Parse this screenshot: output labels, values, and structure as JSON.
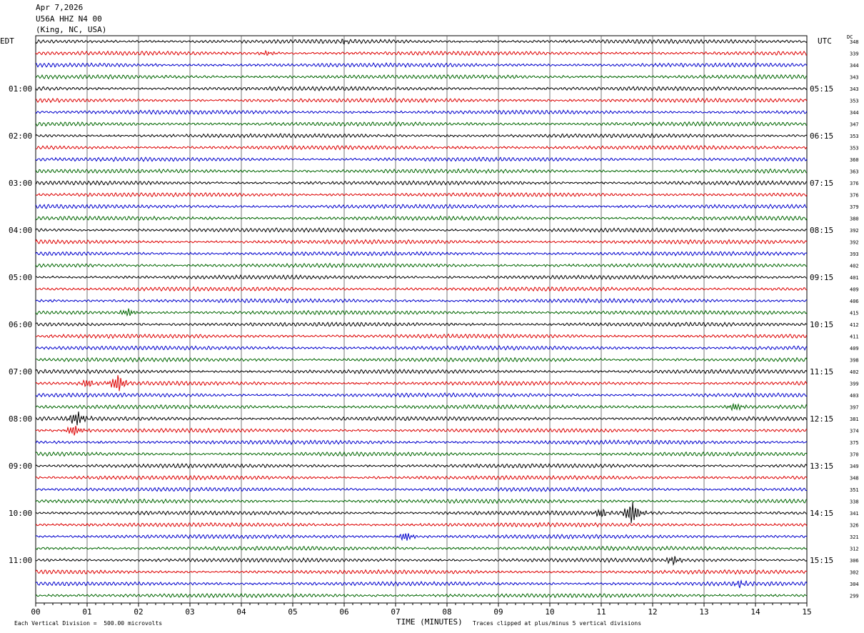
{
  "header": {
    "date": "Apr 7,2026",
    "station": "U56A HHZ N4 00",
    "location": "(King, NC, USA)"
  },
  "left_tz": "EDT",
  "right_tz": "UTC",
  "dc_label": "DC",
  "footer": {
    "scale_note": "Each Vertical Division =  500.00 microvolts",
    "xaxis_label": "TIME (MINUTES)",
    "clip_note": "Traces clipped at plus/minus 5 vertical divisions"
  },
  "chart_data": {
    "type": "line",
    "title": "",
    "xlabel": "TIME (MINUTES)",
    "xlim": [
      0,
      15
    ],
    "x_ticks": [
      "00",
      "01",
      "02",
      "03",
      "04",
      "05",
      "06",
      "07",
      "08",
      "09",
      "10",
      "11",
      "12",
      "13",
      "14",
      "15"
    ],
    "left_time_labels": [
      "01:00",
      "02:00",
      "03:00",
      "04:00",
      "05:00",
      "06:00",
      "07:00",
      "08:00",
      "09:00",
      "10:00",
      "11:00"
    ],
    "right_time_labels": [
      "05:15",
      "06:15",
      "07:15",
      "08:15",
      "09:15",
      "10:15",
      "11:15",
      "12:15",
      "13:15",
      "14:15",
      "15:15"
    ],
    "trace_colors": [
      "#000000",
      "#dd0000",
      "#0000cc",
      "#006600"
    ],
    "trace_count": 48,
    "dc_values": [
      "348",
      "339",
      "344",
      "343",
      "343",
      "353",
      "344",
      "347",
      "353",
      "353",
      "360",
      "363",
      "376",
      "376",
      "379",
      "380",
      "392",
      "392",
      "393",
      "402",
      "401",
      "409",
      "406",
      "415",
      "412",
      "411",
      "409",
      "398",
      "402",
      "399",
      "403",
      "397",
      "381",
      "374",
      "375",
      "370",
      "349",
      "348",
      "351",
      "338",
      "341",
      "326",
      "321",
      "312",
      "306",
      "302",
      "304",
      "299"
    ],
    "events": [
      {
        "trace": 29,
        "minute": 1.0,
        "amplitude": 0.5
      },
      {
        "trace": 29,
        "minute": 1.6,
        "amplitude": 1.1
      },
      {
        "trace": 32,
        "minute": 0.8,
        "amplitude": 0.9
      },
      {
        "trace": 33,
        "minute": 0.75,
        "amplitude": 0.7
      },
      {
        "trace": 23,
        "minute": 1.8,
        "amplitude": 0.5
      },
      {
        "trace": 31,
        "minute": 13.6,
        "amplitude": 0.5
      },
      {
        "trace": 40,
        "minute": 11.0,
        "amplitude": 0.6
      },
      {
        "trace": 40,
        "minute": 11.6,
        "amplitude": 1.5
      },
      {
        "trace": 42,
        "minute": 7.2,
        "amplitude": 0.6
      },
      {
        "trace": 44,
        "minute": 12.4,
        "amplitude": 0.5
      },
      {
        "trace": 46,
        "minute": 13.7,
        "amplitude": 0.4
      },
      {
        "trace": 1,
        "minute": 4.5,
        "amplitude": 0.3
      },
      {
        "trace": 0,
        "minute": 6.0,
        "amplitude": 0.3
      }
    ]
  }
}
